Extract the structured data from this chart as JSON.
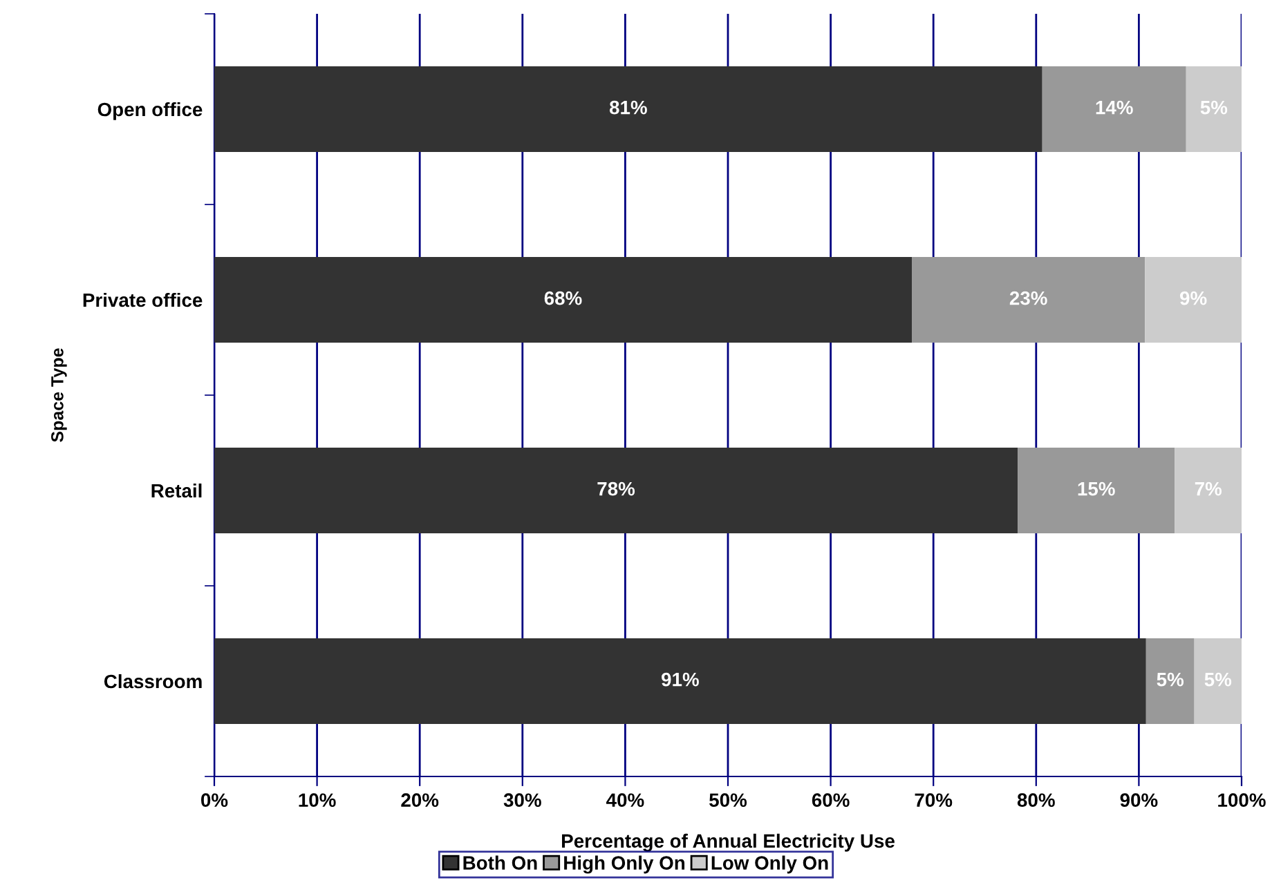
{
  "chart_data": {
    "type": "bar",
    "orientation": "horizontal",
    "stacked": true,
    "categories": [
      "Open office",
      "Private office",
      "Retail",
      "Classroom"
    ],
    "series": [
      {
        "name": "Both On",
        "color": "#333333",
        "values": [
          80.6,
          67.9,
          78.2,
          90.7
        ],
        "value_labels": [
          "81%",
          "68%",
          "78%",
          "91%"
        ]
      },
      {
        "name": "High Only On",
        "color": "#999999",
        "values": [
          14.0,
          22.7,
          15.3,
          4.7
        ],
        "value_labels": [
          "14%",
          "23%",
          "15%",
          "5%"
        ]
      },
      {
        "name": "Low Only On",
        "color": "#cccccc",
        "values": [
          5.4,
          9.4,
          6.5,
          4.6
        ],
        "value_labels": [
          "5%",
          "9%",
          "7%",
          "5%"
        ]
      }
    ],
    "xlabel": "Percentage of Annual Electricity Use",
    "ylabel": "Space Type",
    "xlim": [
      0,
      100
    ],
    "xticks": [
      {
        "value": 0,
        "label": "0%"
      },
      {
        "value": 10,
        "label": "10%"
      },
      {
        "value": 20,
        "label": "20%"
      },
      {
        "value": 30,
        "label": "30%"
      },
      {
        "value": 40,
        "label": "40%"
      },
      {
        "value": 50,
        "label": "50%"
      },
      {
        "value": 60,
        "label": "60%"
      },
      {
        "value": 70,
        "label": "70%"
      },
      {
        "value": 80,
        "label": "80%"
      },
      {
        "value": 90,
        "label": "90%"
      },
      {
        "value": 100,
        "label": "100%"
      }
    ],
    "grid": "x",
    "legend": "bottom"
  }
}
